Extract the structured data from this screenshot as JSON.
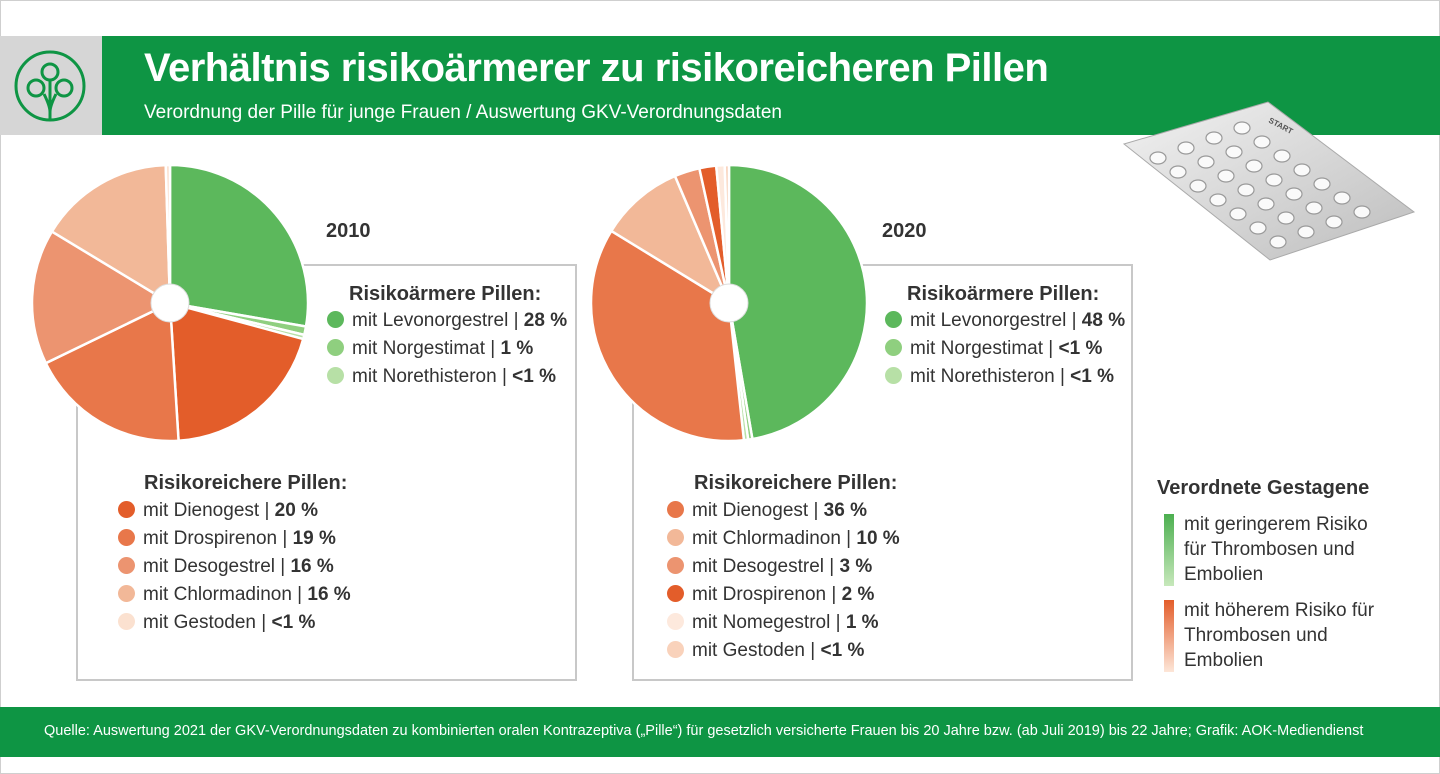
{
  "header": {
    "title": "Verhältnis risikoärmerer zu risikoreicheren Pillen",
    "subtitle": "Verordnung der Pille für junge Frauen / Auswertung GKV-Verordnungsdaten"
  },
  "colors": {
    "brand_green": "#0e9544",
    "low_risk": [
      "#5cb85c",
      "#8fcf7f",
      "#b7e0a6"
    ],
    "high_risk": [
      "#e35d2a",
      "#e8774a",
      "#ec9470",
      "#f2b898",
      "#fbe1d0"
    ]
  },
  "chart_data": [
    {
      "type": "pie",
      "title": "2010",
      "series": [
        {
          "name": "mit Levonorgestrel",
          "value": 28,
          "label": "28 %",
          "group": "Risikoärmere Pillen",
          "color": "#5cb85c"
        },
        {
          "name": "mit Norgestimat",
          "value": 1,
          "label": "1 %",
          "group": "Risikoärmere Pillen",
          "color": "#8fcf7f"
        },
        {
          "name": "mit Norethisteron",
          "value": 0.5,
          "label": "<1 %",
          "group": "Risikoärmere Pillen",
          "color": "#b7e0a6"
        },
        {
          "name": "mit Dienogest",
          "value": 20,
          "label": "20 %",
          "group": "Risikoreichere Pillen",
          "color": "#e35d2a"
        },
        {
          "name": "mit Drospirenon",
          "value": 19,
          "label": "19 %",
          "group": "Risikoreichere Pillen",
          "color": "#e8774a"
        },
        {
          "name": "mit Desogestrel",
          "value": 16,
          "label": "16 %",
          "group": "Risikoreichere Pillen",
          "color": "#ec9470"
        },
        {
          "name": "mit Chlormadinon",
          "value": 16,
          "label": "16 %",
          "group": "Risikoreichere Pillen",
          "color": "#f2b898"
        },
        {
          "name": "mit Gestoden",
          "value": 0.5,
          "label": "<1 %",
          "group": "Risikoreichere Pillen",
          "color": "#fbe1d0"
        }
      ]
    },
    {
      "type": "pie",
      "title": "2020",
      "series": [
        {
          "name": "mit Levonorgestrel",
          "value": 48,
          "label": "48 %",
          "group": "Risikoärmere Pillen",
          "color": "#5cb85c"
        },
        {
          "name": "mit Norgestimat",
          "value": 0.5,
          "label": "<1 %",
          "group": "Risikoärmere Pillen",
          "color": "#8fcf7f"
        },
        {
          "name": "mit Norethisteron",
          "value": 0.5,
          "label": "<1 %",
          "group": "Risikoärmere Pillen",
          "color": "#b7e0a6"
        },
        {
          "name": "mit Dienogest",
          "value": 36,
          "label": "36 %",
          "group": "Risikoreichere Pillen",
          "color": "#e8774a"
        },
        {
          "name": "mit Chlormadinon",
          "value": 10,
          "label": "10 %",
          "group": "Risikoreichere Pillen",
          "color": "#f2b898"
        },
        {
          "name": "mit Desogestrel",
          "value": 3,
          "label": "3 %",
          "group": "Risikoreichere Pillen",
          "color": "#ec9470"
        },
        {
          "name": "mit Drospirenon",
          "value": 2,
          "label": "2 %",
          "group": "Risikoreichere Pillen",
          "color": "#e35d2a"
        },
        {
          "name": "mit Nomegestrol",
          "value": 1,
          "label": "1 %",
          "group": "Risikoreichere Pillen",
          "color": "#fde9dd"
        },
        {
          "name": "mit Gestoden",
          "value": 0.5,
          "label": "<1 %",
          "group": "Risikoreichere Pillen",
          "color": "#f9d2bb"
        }
      ]
    }
  ],
  "legend_groups": {
    "low": "Risikoärmere Pillen:",
    "high": "Risikoreichere Pillen:"
  },
  "key": {
    "title": "Verordnete Gestagene",
    "low_text": "mit geringerem Risiko für Thrombosen und Embolien",
    "high_text": "mit höherem Risiko für Thrombosen und Embolien"
  },
  "blister": {
    "label": "START"
  },
  "footer": {
    "source": "Quelle: Auswertung 2021 der GKV-Verordnungsdaten zu kombinierten oralen Kontrazeptiva („Pille“) für gesetzlich versicherte Frauen bis 20 Jahre bzw. (ab Juli 2019) bis 22 Jahre; Grafik: AOK-Mediendienst"
  }
}
